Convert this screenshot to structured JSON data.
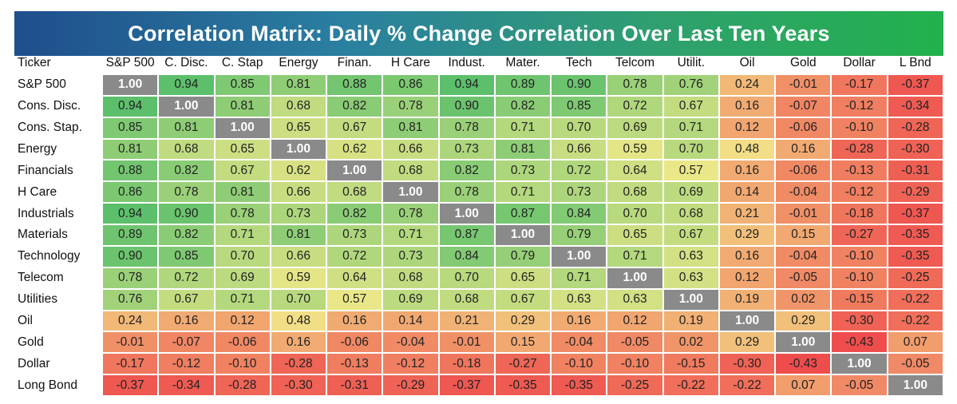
{
  "title": "Correlation Matrix: Daily % Change Correlation Over Last Ten Years",
  "chart_data": {
    "type": "heatmap",
    "corner_label": "Ticker",
    "columns": [
      "S&P 500",
      "C. Disc.",
      "C. Stap",
      "Energy",
      "Finan.",
      "H Care",
      "Indust.",
      "Mater.",
      "Tech",
      "Telcom",
      "Utilit.",
      "Oil",
      "Gold",
      "Dollar",
      "L Bnd"
    ],
    "rows": [
      "S&P 500",
      "Cons. Disc.",
      "Cons. Stap.",
      "Energy",
      "Financials",
      "H Care",
      "Industrials",
      "Materials",
      "Technology",
      "Telecom",
      "Utilities",
      "Oil",
      "Gold",
      "Dollar",
      "Long Bond"
    ],
    "values": [
      [
        1.0,
        0.94,
        0.85,
        0.81,
        0.88,
        0.86,
        0.94,
        0.89,
        0.9,
        0.78,
        0.76,
        0.24,
        -0.01,
        -0.17,
        -0.37
      ],
      [
        0.94,
        1.0,
        0.81,
        0.68,
        0.82,
        0.78,
        0.9,
        0.82,
        0.85,
        0.72,
        0.67,
        0.16,
        -0.07,
        -0.12,
        -0.34
      ],
      [
        0.85,
        0.81,
        1.0,
        0.65,
        0.67,
        0.81,
        0.78,
        0.71,
        0.7,
        0.69,
        0.71,
        0.12,
        -0.06,
        -0.1,
        -0.28
      ],
      [
        0.81,
        0.68,
        0.65,
        1.0,
        0.62,
        0.66,
        0.73,
        0.81,
        0.66,
        0.59,
        0.7,
        0.48,
        0.16,
        -0.28,
        -0.3
      ],
      [
        0.88,
        0.82,
        0.67,
        0.62,
        1.0,
        0.68,
        0.82,
        0.73,
        0.72,
        0.64,
        0.57,
        0.16,
        -0.06,
        -0.13,
        -0.31
      ],
      [
        0.86,
        0.78,
        0.81,
        0.66,
        0.68,
        1.0,
        0.78,
        0.71,
        0.73,
        0.68,
        0.69,
        0.14,
        -0.04,
        -0.12,
        -0.29
      ],
      [
        0.94,
        0.9,
        0.78,
        0.73,
        0.82,
        0.78,
        1.0,
        0.87,
        0.84,
        0.7,
        0.68,
        0.21,
        -0.01,
        -0.18,
        -0.37
      ],
      [
        0.89,
        0.82,
        0.71,
        0.81,
        0.73,
        0.71,
        0.87,
        1.0,
        0.79,
        0.65,
        0.67,
        0.29,
        0.15,
        -0.27,
        -0.35
      ],
      [
        0.9,
        0.85,
        0.7,
        0.66,
        0.72,
        0.73,
        0.84,
        0.79,
        1.0,
        0.71,
        0.63,
        0.16,
        -0.04,
        -0.1,
        -0.35
      ],
      [
        0.78,
        0.72,
        0.69,
        0.59,
        0.64,
        0.68,
        0.7,
        0.65,
        0.71,
        1.0,
        0.63,
        0.12,
        -0.05,
        -0.1,
        -0.25
      ],
      [
        0.76,
        0.67,
        0.71,
        0.7,
        0.57,
        0.69,
        0.68,
        0.67,
        0.63,
        0.63,
        1.0,
        0.19,
        0.02,
        -0.15,
        -0.22
      ],
      [
        0.24,
        0.16,
        0.12,
        0.48,
        0.16,
        0.14,
        0.21,
        0.29,
        0.16,
        0.12,
        0.19,
        1.0,
        0.29,
        -0.3,
        -0.22
      ],
      [
        -0.01,
        -0.07,
        -0.06,
        0.16,
        -0.06,
        -0.04,
        -0.01,
        0.15,
        -0.04,
        -0.05,
        0.02,
        0.29,
        1.0,
        -0.43,
        0.07
      ],
      [
        -0.17,
        -0.12,
        -0.1,
        -0.28,
        -0.13,
        -0.12,
        -0.18,
        -0.27,
        -0.1,
        -0.1,
        -0.15,
        -0.3,
        -0.43,
        1.0,
        -0.05
      ],
      [
        -0.37,
        -0.34,
        -0.28,
        -0.3,
        -0.31,
        -0.29,
        -0.37,
        -0.35,
        -0.35,
        -0.25,
        -0.22,
        -0.22,
        0.07,
        -0.05,
        1.0
      ]
    ],
    "colors": {
      "high": "#5cbf6b",
      "mid": "#f2e98a",
      "low": "#ef4d4d",
      "diagonal": "#8a8a8a"
    }
  }
}
